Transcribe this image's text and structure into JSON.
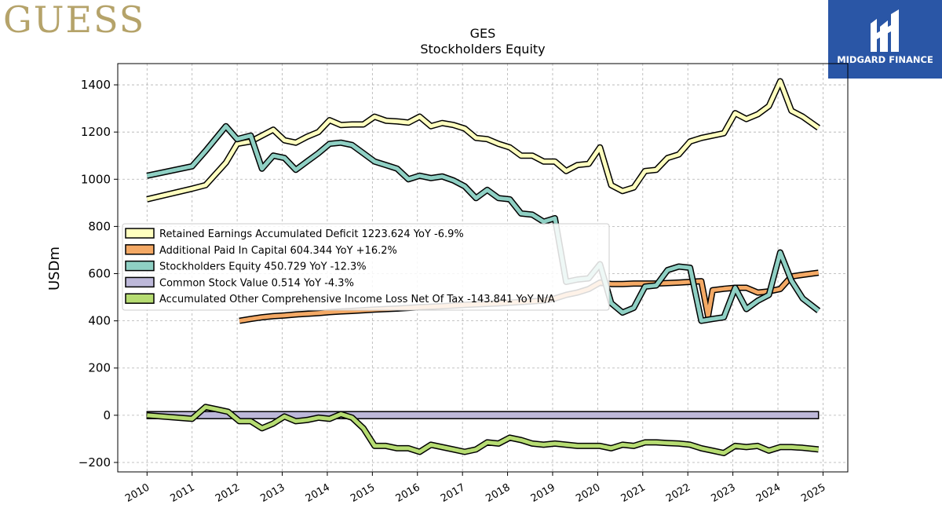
{
  "branding": {
    "logo_text": "GUESS",
    "publisher": "MIDGARD FINANCE"
  },
  "colors": {
    "retained": "#ffffbf",
    "apic": "#f4a965",
    "equity": "#8fd0c4",
    "common": "#bdb8d9",
    "aoci": "#b6dc72",
    "grid": "#b0b0b0",
    "publisher_bg": "#2a56a6"
  },
  "chart_data": {
    "type": "line",
    "title": "GES",
    "subtitle": "Stockholders  Equity",
    "ylabel": "USDm",
    "xlabel": "",
    "ylim": [
      -240,
      1490
    ],
    "xlim": [
      2009.35,
      2025.55
    ],
    "yticks": [
      -200,
      0,
      200,
      400,
      600,
      800,
      1000,
      1200,
      1400
    ],
    "ytick_labels": [
      "−200",
      "0",
      "200",
      "400",
      "600",
      "800",
      "1000",
      "1200",
      "1400"
    ],
    "xticks": [
      2010,
      2011,
      2012,
      2013,
      2014,
      2015,
      2016,
      2017,
      2018,
      2019,
      2020,
      2021,
      2022,
      2023,
      2024,
      2025
    ],
    "xtick_labels": [
      "2010",
      "2011",
      "2012",
      "2013",
      "2014",
      "2015",
      "2016",
      "2017",
      "2018",
      "2019",
      "2020",
      "2021",
      "2022",
      "2023",
      "2024",
      "2025"
    ],
    "grid": true,
    "legend_position": "center-left",
    "series": [
      {
        "key": "retained",
        "name": "Retained Earnings Accumulated Deficit",
        "legend_label": "Retained Earnings Accumulated Deficit  1223.624 YoY -6.9%",
        "x": [
          2010.0,
          2011.0,
          2011.3,
          2011.75,
          2012.0,
          2012.3,
          2012.55,
          2012.8,
          2013.05,
          2013.3,
          2013.55,
          2013.8,
          2014.05,
          2014.3,
          2014.55,
          2014.8,
          2015.05,
          2015.3,
          2015.55,
          2015.8,
          2016.05,
          2016.3,
          2016.55,
          2016.8,
          2017.05,
          2017.3,
          2017.55,
          2017.8,
          2018.05,
          2018.3,
          2018.55,
          2018.8,
          2019.05,
          2019.3,
          2019.55,
          2019.8,
          2020.05,
          2020.3,
          2020.55,
          2020.8,
          2021.05,
          2021.3,
          2021.55,
          2021.8,
          2022.05,
          2022.3,
          2022.55,
          2022.8,
          2023.05,
          2023.3,
          2023.55,
          2023.8,
          2024.05,
          2024.3,
          2024.55,
          2024.9
        ],
        "y": [
          915,
          960,
          975,
          1070,
          1150,
          1160,
          1185,
          1210,
          1165,
          1155,
          1180,
          1200,
          1250,
          1230,
          1232,
          1232,
          1265,
          1248,
          1245,
          1240,
          1265,
          1225,
          1238,
          1230,
          1215,
          1175,
          1170,
          1150,
          1135,
          1100,
          1100,
          1075,
          1075,
          1035,
          1060,
          1065,
          1135,
          975,
          950,
          965,
          1035,
          1040,
          1090,
          1105,
          1160,
          1175,
          1185,
          1195,
          1280,
          1255,
          1275,
          1310,
          1415,
          1290,
          1265,
          1218
        ]
      },
      {
        "key": "apic",
        "name": "Additional Paid In Capital",
        "legend_label": "Additional Paid In Capital  604.344 YoY +16.2%",
        "x": [
          2012.05,
          2012.3,
          2012.55,
          2012.8,
          2013.05,
          2013.3,
          2013.55,
          2013.8,
          2014.05,
          2014.3,
          2014.55,
          2014.8,
          2015.05,
          2015.3,
          2015.55,
          2015.8,
          2016.05,
          2016.3,
          2016.55,
          2016.8,
          2017.05,
          2017.3,
          2017.55,
          2017.8,
          2018.05,
          2018.3,
          2018.55,
          2018.8,
          2019.05,
          2019.3,
          2019.55,
          2019.8,
          2020.05,
          2020.3,
          2020.55,
          2020.8,
          2021.05,
          2021.3,
          2021.55,
          2021.8,
          2022.05,
          2022.3,
          2022.45,
          2022.55,
          2022.8,
          2023.05,
          2023.3,
          2023.55,
          2023.8,
          2024.05,
          2024.3,
          2024.55,
          2024.9
        ],
        "y": [
          400,
          408,
          415,
          420,
          423,
          427,
          430,
          433,
          437,
          440,
          442,
          445,
          448,
          450,
          452,
          455,
          458,
          460,
          462,
          465,
          468,
          470,
          472,
          474,
          477,
          480,
          483,
          486,
          495,
          510,
          520,
          535,
          562,
          556,
          556,
          558,
          558,
          558,
          560,
          562,
          565,
          568,
          420,
          530,
          536,
          540,
          540,
          520,
          525,
          535,
          588,
          595,
          604
        ]
      },
      {
        "key": "equity",
        "name": "Stockholders Equity",
        "legend_label": "Stockholders Equity  450.729 YoY -12.3%",
        "x": [
          2010.0,
          2011.0,
          2011.3,
          2011.75,
          2012.0,
          2012.3,
          2012.55,
          2012.8,
          2013.05,
          2013.3,
          2013.55,
          2013.8,
          2014.05,
          2014.3,
          2014.55,
          2014.8,
          2015.05,
          2015.3,
          2015.55,
          2015.8,
          2016.05,
          2016.3,
          2016.55,
          2016.8,
          2017.05,
          2017.3,
          2017.55,
          2017.8,
          2018.05,
          2018.3,
          2018.55,
          2018.8,
          2019.05,
          2019.3,
          2019.55,
          2019.8,
          2020.05,
          2020.3,
          2020.55,
          2020.8,
          2021.05,
          2021.3,
          2021.55,
          2021.8,
          2022.05,
          2022.3,
          2022.55,
          2022.8,
          2023.05,
          2023.3,
          2023.55,
          2023.8,
          2024.05,
          2024.3,
          2024.55,
          2024.9
        ],
        "y": [
          1015,
          1055,
          1120,
          1225,
          1170,
          1185,
          1045,
          1100,
          1090,
          1040,
          1075,
          1110,
          1150,
          1155,
          1145,
          1110,
          1075,
          1060,
          1045,
          1000,
          1015,
          1005,
          1012,
          995,
          970,
          920,
          955,
          920,
          915,
          855,
          850,
          820,
          835,
          565,
          575,
          580,
          640,
          475,
          435,
          455,
          545,
          550,
          615,
          630,
          625,
          400,
          408,
          415,
          540,
          450,
          485,
          510,
          690,
          570,
          495,
          443
        ]
      },
      {
        "key": "common",
        "name": "Common Stock Value",
        "legend_label": "Common Stock Value  0.514 YoY -4.3%",
        "x": [
          2010.0,
          2024.9
        ],
        "y": [
          0.54,
          0.514
        ],
        "band": 30
      },
      {
        "key": "aoci",
        "name": "Accumulated Other Comprehensive Income Loss Net Of Tax",
        "legend_label": "Accumulated Other Comprehensive Income Loss Net Of Tax  -143.841 YoY N/A",
        "x": [
          2010.0,
          2011.0,
          2011.3,
          2011.55,
          2011.8,
          2012.05,
          2012.3,
          2012.55,
          2012.8,
          2013.05,
          2013.3,
          2013.55,
          2013.8,
          2014.05,
          2014.3,
          2014.55,
          2014.8,
          2015.05,
          2015.3,
          2015.55,
          2015.8,
          2016.05,
          2016.3,
          2016.55,
          2016.8,
          2017.05,
          2017.3,
          2017.55,
          2017.8,
          2018.05,
          2018.3,
          2018.55,
          2018.8,
          2019.05,
          2019.3,
          2019.55,
          2019.8,
          2020.05,
          2020.3,
          2020.55,
          2020.8,
          2021.05,
          2021.3,
          2021.55,
          2021.8,
          2022.05,
          2022.3,
          2022.55,
          2022.8,
          2023.05,
          2023.3,
          2023.55,
          2023.8,
          2024.05,
          2024.3,
          2024.55,
          2024.9
        ],
        "y": [
          0,
          -15,
          35,
          25,
          15,
          -25,
          -25,
          -55,
          -35,
          -5,
          -25,
          -20,
          -10,
          -15,
          5,
          -10,
          -55,
          -130,
          -130,
          -140,
          -140,
          -155,
          -125,
          -135,
          -145,
          -155,
          -145,
          -115,
          -120,
          -95,
          -105,
          -120,
          -125,
          -120,
          -125,
          -130,
          -130,
          -130,
          -140,
          -125,
          -130,
          -115,
          -115,
          -118,
          -120,
          -125,
          -140,
          -150,
          -160,
          -130,
          -135,
          -130,
          -150,
          -135,
          -135,
          -138,
          -145
        ]
      }
    ]
  }
}
